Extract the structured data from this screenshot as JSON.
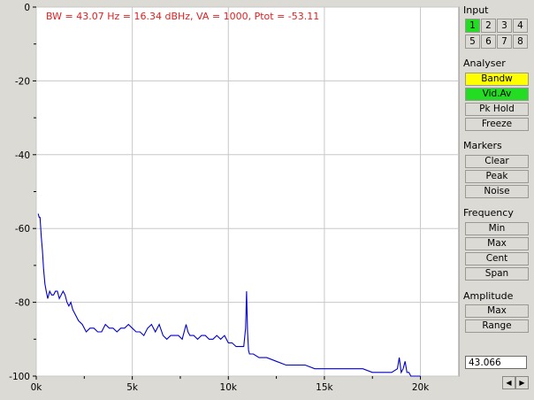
{
  "status_line": "BW = 43.07 Hz = 16.34 dBHz, VA = 1000, Ptot = -53.11",
  "input": {
    "title": "Input",
    "buttons": [
      "1",
      "2",
      "3",
      "4",
      "5",
      "6",
      "7",
      "8"
    ],
    "active": "1"
  },
  "analyser": {
    "title": "Analyser",
    "buttons": [
      {
        "label": "Bandw",
        "color": "#ffff00"
      },
      {
        "label": "Vid.Av",
        "color": "#22dd22"
      },
      {
        "label": "Pk Hold",
        "color": "#dcdad5"
      },
      {
        "label": "Freeze",
        "color": "#dcdad5"
      }
    ]
  },
  "markers": {
    "title": "Markers",
    "buttons": [
      "Clear",
      "Peak",
      "Noise"
    ]
  },
  "frequency": {
    "title": "Frequency",
    "buttons": [
      "Min",
      "Max",
      "Cent",
      "Span"
    ]
  },
  "amplitude": {
    "title": "Amplitude",
    "buttons": [
      "Max",
      "Range"
    ]
  },
  "value_field": "43.066",
  "nav": {
    "left_icon": "triangle-left-icon",
    "right_icon": "triangle-right-icon"
  },
  "chart_data": {
    "type": "line",
    "xlim": [
      0,
      22000
    ],
    "ylim": [
      -100,
      0
    ],
    "x_ticks": [
      {
        "value": 0,
        "label": "0k"
      },
      {
        "value": 5000,
        "label": "5k"
      },
      {
        "value": 10000,
        "label": "10k"
      },
      {
        "value": 15000,
        "label": "15k"
      },
      {
        "value": 20000,
        "label": "20k"
      }
    ],
    "y_ticks": [
      {
        "value": 0,
        "label": "0"
      },
      {
        "value": -20,
        "label": "-20"
      },
      {
        "value": -40,
        "label": "-40"
      },
      {
        "value": -60,
        "label": "-60"
      },
      {
        "value": -80,
        "label": "-80"
      },
      {
        "value": -100,
        "label": "-100"
      }
    ],
    "grid": true,
    "line_color": "#0000cc",
    "series": [
      {
        "x": [
          100,
          150,
          200,
          260,
          320,
          380,
          450,
          520,
          600,
          700,
          800,
          900,
          1000,
          1100,
          1200,
          1300,
          1400,
          1500,
          1600,
          1700,
          1800,
          1900,
          2000,
          2200,
          2400,
          2600,
          2800,
          3000,
          3200,
          3400,
          3600,
          3800,
          4000,
          4200,
          4400,
          4600,
          4800,
          5000,
          5200,
          5400,
          5600,
          5800,
          6000,
          6200,
          6400,
          6600,
          6800,
          7000,
          7200,
          7400,
          7600,
          7800,
          7900,
          8000,
          8200,
          8400,
          8600,
          8800,
          9000,
          9200,
          9400,
          9600,
          9800,
          10000,
          10200,
          10400,
          10600,
          10800,
          10900,
          10950,
          11000,
          11050,
          11100,
          11300,
          11600,
          12000,
          12500,
          13000,
          13500,
          14000,
          14500,
          15000,
          15500,
          16000,
          16500,
          17000,
          17500,
          18000,
          18500,
          18800,
          18900,
          19000,
          19100,
          19200,
          19300,
          19400,
          19500,
          19800,
          20000
        ],
        "y": [
          -56,
          -57,
          -57,
          -62,
          -66,
          -71,
          -75,
          -77,
          -79,
          -77,
          -78,
          -78,
          -77,
          -77,
          -79,
          -78,
          -77,
          -78,
          -80,
          -81,
          -80,
          -82,
          -83,
          -85,
          -86,
          -88,
          -87,
          -87,
          -88,
          -88,
          -86,
          -87,
          -87,
          -88,
          -87,
          -87,
          -86,
          -87,
          -88,
          -88,
          -89,
          -87,
          -86,
          -88,
          -86,
          -89,
          -90,
          -89,
          -89,
          -89,
          -90,
          -86,
          -88,
          -89,
          -89,
          -90,
          -89,
          -89,
          -90,
          -90,
          -89,
          -90,
          -89,
          -91,
          -91,
          -92,
          -92,
          -92,
          -87,
          -77,
          -88,
          -93,
          -94,
          -94,
          -95,
          -95,
          -96,
          -97,
          -97,
          -97,
          -98,
          -98,
          -98,
          -98,
          -98,
          -98,
          -99,
          -99,
          -99,
          -98,
          -95,
          -99,
          -98,
          -96,
          -99,
          -99,
          -100,
          -100,
          -100
        ]
      }
    ]
  }
}
